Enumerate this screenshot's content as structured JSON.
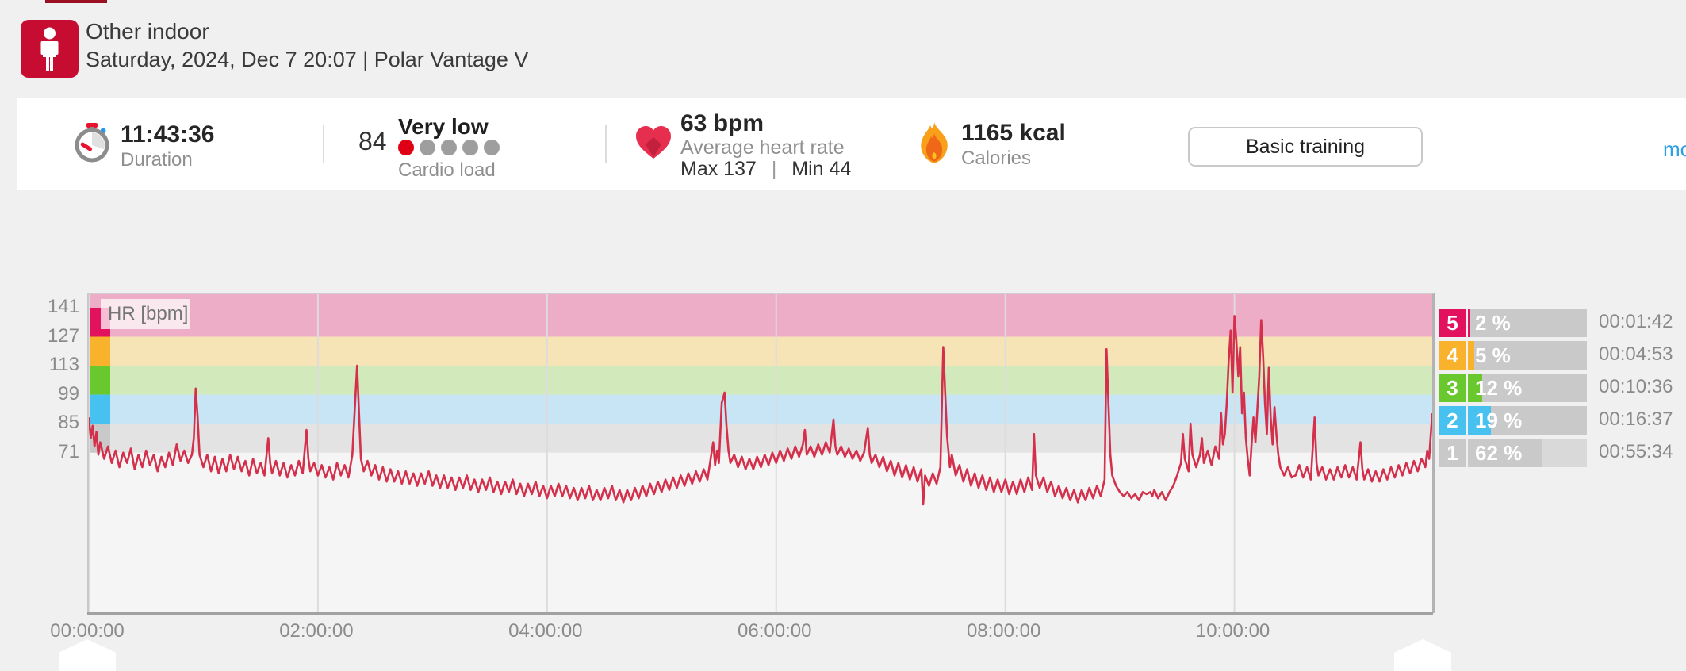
{
  "header": {
    "title": "Other indoor",
    "subtitle": "Saturday, 2024, Dec 7 20:07  |  Polar Vantage V",
    "sport_icon": "person-indoor-icon",
    "icon_color": "#c60c30"
  },
  "stats": {
    "duration": {
      "value": "11:43:36",
      "label": "Duration",
      "icon": "stopwatch-icon"
    },
    "cardio_load": {
      "value": "84",
      "status": "Very low",
      "label": "Cardio load",
      "dots_total": 5,
      "dots_filled": 1,
      "dot_filled_color": "#e00016",
      "dot_empty_color": "#9e9e9e"
    },
    "heart_rate": {
      "value": "63 bpm",
      "label": "Average heart rate",
      "max_label": "Max 137",
      "separator": "|",
      "min_label": "Min 44",
      "icon": "heart-icon"
    },
    "calories": {
      "value": "1165 kcal",
      "label": "Calories",
      "icon": "flame-icon"
    },
    "training_benefit_button": "Basic training",
    "more_link": "mo"
  },
  "chart_data": {
    "type": "line",
    "title": "HR [bpm]",
    "series_name": "HR",
    "unit": "bpm",
    "line_color": "#d4304c",
    "plot_bg": "#f5f5f5",
    "grid_color": "#dcdcdc",
    "x_ticks": [
      "00:00:00",
      "02:00:00",
      "04:00:00",
      "06:00:00",
      "08:00:00",
      "10:00:00"
    ],
    "x_tick_minutes": [
      0,
      120,
      240,
      360,
      480,
      600
    ],
    "xlim_minutes": [
      0,
      703.6
    ],
    "y_ticks": [
      141,
      127,
      113,
      99,
      85,
      71
    ],
    "ylim": [
      -6.5,
      147.5
    ],
    "summary": {
      "avg": 63,
      "max": 137,
      "min": 44
    },
    "zones": [
      {
        "zone": "5",
        "color": "#e3125f",
        "band_color": "#eeadc7",
        "bar_bg": "#c9c9c9",
        "bpm_range": [
          127,
          141
        ],
        "percent": 2,
        "percent_label": "2 %",
        "time": "00:01:42"
      },
      {
        "zone": "4",
        "color": "#f9b22b",
        "band_color": "#f6e4b6",
        "bar_bg": "#c9c9c9",
        "bpm_range": [
          113,
          127
        ],
        "percent": 5,
        "percent_label": "5 %",
        "time": "00:04:53"
      },
      {
        "zone": "3",
        "color": "#6ac82f",
        "band_color": "#d2eabb",
        "bar_bg": "#c9c9c9",
        "bpm_range": [
          99,
          113
        ],
        "percent": 12,
        "percent_label": "12 %",
        "time": "00:10:36"
      },
      {
        "zone": "2",
        "color": "#46c1f0",
        "band_color": "#c7e5f4",
        "bar_bg": "#c9c9c9",
        "bpm_range": [
          85,
          99
        ],
        "percent": 19,
        "percent_label": "19 %",
        "time": "00:16:37"
      },
      {
        "zone": "1",
        "color": "#c9c9c9",
        "band_color": "#e3e3e3",
        "bar_bg": "#d9d9d9",
        "bpm_range": [
          71,
          85
        ],
        "percent": 62,
        "percent_label": "62 %",
        "time": "00:55:34"
      }
    ],
    "points": [
      [
        0,
        88
      ],
      [
        1,
        78
      ],
      [
        2,
        84
      ],
      [
        3,
        74
      ],
      [
        4,
        81
      ],
      [
        5,
        70
      ],
      [
        6,
        76
      ],
      [
        8,
        68
      ],
      [
        10,
        74
      ],
      [
        12,
        66
      ],
      [
        14,
        72
      ],
      [
        16,
        64
      ],
      [
        18,
        71
      ],
      [
        20,
        66
      ],
      [
        22,
        73
      ],
      [
        24,
        63
      ],
      [
        26,
        70
      ],
      [
        28,
        64
      ],
      [
        30,
        72
      ],
      [
        32,
        65
      ],
      [
        34,
        70
      ],
      [
        36,
        62
      ],
      [
        38,
        69
      ],
      [
        40,
        64
      ],
      [
        42,
        71
      ],
      [
        44,
        65
      ],
      [
        46,
        75
      ],
      [
        48,
        67
      ],
      [
        50,
        72
      ],
      [
        52,
        66
      ],
      [
        54,
        70
      ],
      [
        55,
        78
      ],
      [
        56,
        102
      ],
      [
        57,
        88
      ],
      [
        58,
        70
      ],
      [
        60,
        64
      ],
      [
        62,
        70
      ],
      [
        64,
        62
      ],
      [
        66,
        69
      ],
      [
        68,
        61
      ],
      [
        70,
        68
      ],
      [
        72,
        62
      ],
      [
        74,
        70
      ],
      [
        76,
        63
      ],
      [
        78,
        69
      ],
      [
        80,
        62
      ],
      [
        82,
        67
      ],
      [
        84,
        60
      ],
      [
        86,
        68
      ],
      [
        88,
        61
      ],
      [
        90,
        66
      ],
      [
        92,
        60
      ],
      [
        94,
        78
      ],
      [
        95,
        66
      ],
      [
        96,
        61
      ],
      [
        98,
        67
      ],
      [
        100,
        60
      ],
      [
        102,
        66
      ],
      [
        104,
        59
      ],
      [
        106,
        65
      ],
      [
        108,
        60
      ],
      [
        110,
        67
      ],
      [
        112,
        61
      ],
      [
        114,
        82
      ],
      [
        115,
        68
      ],
      [
        116,
        62
      ],
      [
        118,
        66
      ],
      [
        120,
        60
      ],
      [
        122,
        65
      ],
      [
        124,
        59
      ],
      [
        126,
        64
      ],
      [
        128,
        58
      ],
      [
        130,
        66
      ],
      [
        132,
        60
      ],
      [
        134,
        65
      ],
      [
        136,
        59
      ],
      [
        138,
        70
      ],
      [
        139.5,
        96
      ],
      [
        140.5,
        113
      ],
      [
        141.5,
        90
      ],
      [
        142.5,
        68
      ],
      [
        144,
        62
      ],
      [
        146,
        67
      ],
      [
        148,
        60
      ],
      [
        150,
        65
      ],
      [
        152,
        58
      ],
      [
        154,
        64
      ],
      [
        156,
        57
      ],
      [
        158,
        63
      ],
      [
        160,
        57
      ],
      [
        162,
        62
      ],
      [
        164,
        56
      ],
      [
        166,
        62
      ],
      [
        168,
        56
      ],
      [
        170,
        61
      ],
      [
        172,
        55
      ],
      [
        174,
        61
      ],
      [
        176,
        56
      ],
      [
        178,
        62
      ],
      [
        180,
        55
      ],
      [
        182,
        60
      ],
      [
        184,
        54
      ],
      [
        186,
        60
      ],
      [
        188,
        54
      ],
      [
        190,
        59
      ],
      [
        192,
        53
      ],
      [
        194,
        59
      ],
      [
        196,
        54
      ],
      [
        198,
        60
      ],
      [
        200,
        53
      ],
      [
        202,
        58
      ],
      [
        204,
        52
      ],
      [
        206,
        58
      ],
      [
        208,
        53
      ],
      [
        210,
        59
      ],
      [
        212,
        52
      ],
      [
        214,
        57
      ],
      [
        216,
        51
      ],
      [
        218,
        57
      ],
      [
        220,
        52
      ],
      [
        222,
        58
      ],
      [
        224,
        51
      ],
      [
        226,
        56
      ],
      [
        228,
        50
      ],
      [
        230,
        56
      ],
      [
        232,
        51
      ],
      [
        234,
        57
      ],
      [
        236,
        50
      ],
      [
        238,
        55
      ],
      [
        240,
        49
      ],
      [
        242,
        55
      ],
      [
        244,
        50
      ],
      [
        246,
        56
      ],
      [
        248,
        50
      ],
      [
        250,
        55
      ],
      [
        252,
        49
      ],
      [
        254,
        54
      ],
      [
        256,
        48
      ],
      [
        258,
        54
      ],
      [
        260,
        49
      ],
      [
        262,
        55
      ],
      [
        264,
        48
      ],
      [
        266,
        53
      ],
      [
        268,
        48
      ],
      [
        270,
        54
      ],
      [
        272,
        49
      ],
      [
        274,
        55
      ],
      [
        276,
        48
      ],
      [
        278,
        53
      ],
      [
        280,
        47
      ],
      [
        282,
        53
      ],
      [
        284,
        48
      ],
      [
        286,
        54
      ],
      [
        288,
        49
      ],
      [
        290,
        55
      ],
      [
        292,
        50
      ],
      [
        294,
        56
      ],
      [
        296,
        51
      ],
      [
        298,
        57
      ],
      [
        300,
        52
      ],
      [
        302,
        58
      ],
      [
        304,
        53
      ],
      [
        306,
        59
      ],
      [
        308,
        54
      ],
      [
        310,
        60
      ],
      [
        312,
        55
      ],
      [
        314,
        61
      ],
      [
        316,
        56
      ],
      [
        318,
        62
      ],
      [
        320,
        57
      ],
      [
        322,
        63
      ],
      [
        324,
        58
      ],
      [
        326,
        70
      ],
      [
        327,
        76
      ],
      [
        328,
        65
      ],
      [
        329,
        72
      ],
      [
        330,
        66
      ],
      [
        331.5,
        95
      ],
      [
        333,
        100
      ],
      [
        334,
        84
      ],
      [
        335,
        72
      ],
      [
        336,
        66
      ],
      [
        338,
        70
      ],
      [
        340,
        64
      ],
      [
        342,
        69
      ],
      [
        344,
        63
      ],
      [
        346,
        68
      ],
      [
        348,
        63
      ],
      [
        350,
        69
      ],
      [
        352,
        64
      ],
      [
        354,
        70
      ],
      [
        356,
        65
      ],
      [
        358,
        71
      ],
      [
        360,
        66
      ],
      [
        362,
        72
      ],
      [
        364,
        67
      ],
      [
        366,
        73
      ],
      [
        368,
        68
      ],
      [
        370,
        74
      ],
      [
        372,
        69
      ],
      [
        374,
        75
      ],
      [
        375,
        82
      ],
      [
        376,
        70
      ],
      [
        378,
        74
      ],
      [
        380,
        69
      ],
      [
        382,
        75
      ],
      [
        384,
        70
      ],
      [
        386,
        76
      ],
      [
        388,
        71
      ],
      [
        390,
        87
      ],
      [
        391,
        74
      ],
      [
        392,
        70
      ],
      [
        394,
        74
      ],
      [
        396,
        69
      ],
      [
        398,
        73
      ],
      [
        400,
        68
      ],
      [
        402,
        72
      ],
      [
        404,
        67
      ],
      [
        406,
        71
      ],
      [
        408,
        83
      ],
      [
        409,
        70
      ],
      [
        410,
        66
      ],
      [
        412,
        70
      ],
      [
        414,
        64
      ],
      [
        416,
        69
      ],
      [
        418,
        62
      ],
      [
        420,
        67
      ],
      [
        422,
        60
      ],
      [
        424,
        66
      ],
      [
        426,
        59
      ],
      [
        428,
        65
      ],
      [
        430,
        58
      ],
      [
        432,
        64
      ],
      [
        434,
        57
      ],
      [
        436,
        63
      ],
      [
        437,
        46
      ],
      [
        438,
        60
      ],
      [
        440,
        55
      ],
      [
        442,
        61
      ],
      [
        444,
        56
      ],
      [
        446,
        64
      ],
      [
        447.5,
        122
      ],
      [
        448.5,
        100
      ],
      [
        449.5,
        79
      ],
      [
        451,
        64
      ],
      [
        452,
        70
      ],
      [
        454,
        60
      ],
      [
        456,
        65
      ],
      [
        458,
        57
      ],
      [
        460,
        63
      ],
      [
        462,
        55
      ],
      [
        464,
        61
      ],
      [
        466,
        54
      ],
      [
        468,
        60
      ],
      [
        470,
        53
      ],
      [
        472,
        59
      ],
      [
        474,
        52
      ],
      [
        476,
        58
      ],
      [
        478,
        52
      ],
      [
        480,
        58
      ],
      [
        482,
        51
      ],
      [
        484,
        57
      ],
      [
        486,
        51
      ],
      [
        488,
        58
      ],
      [
        490,
        52
      ],
      [
        492,
        59
      ],
      [
        494,
        53
      ],
      [
        495,
        80
      ],
      [
        496,
        60
      ],
      [
        498,
        54
      ],
      [
        500,
        59
      ],
      [
        502,
        52
      ],
      [
        504,
        57
      ],
      [
        506,
        50
      ],
      [
        508,
        55
      ],
      [
        510,
        49
      ],
      [
        512,
        54
      ],
      [
        514,
        48
      ],
      [
        516,
        53
      ],
      [
        518,
        47
      ],
      [
        520,
        53
      ],
      [
        522,
        48
      ],
      [
        524,
        54
      ],
      [
        526,
        49
      ],
      [
        528,
        55
      ],
      [
        530,
        50
      ],
      [
        532,
        58
      ],
      [
        533,
        121
      ],
      [
        534,
        95
      ],
      [
        535,
        70
      ],
      [
        536,
        60
      ],
      [
        538,
        55
      ],
      [
        540,
        52
      ],
      [
        542,
        50
      ],
      [
        544,
        52
      ],
      [
        546,
        49
      ],
      [
        548,
        51
      ],
      [
        550,
        48
      ],
      [
        552,
        52
      ],
      [
        554,
        51
      ],
      [
        556,
        52
      ],
      [
        557,
        50
      ],
      [
        558,
        53
      ],
      [
        560,
        49
      ],
      [
        562,
        52
      ],
      [
        564,
        48
      ],
      [
        566,
        52
      ],
      [
        568,
        55
      ],
      [
        570,
        60
      ],
      [
        572,
        66
      ],
      [
        573,
        80
      ],
      [
        574,
        68
      ],
      [
        576,
        62
      ],
      [
        577,
        85
      ],
      [
        578,
        70
      ],
      [
        580,
        64
      ],
      [
        582,
        70
      ],
      [
        583,
        78
      ],
      [
        584,
        66
      ],
      [
        586,
        72
      ],
      [
        588,
        65
      ],
      [
        590,
        74
      ],
      [
        592,
        68
      ],
      [
        593,
        90
      ],
      [
        594,
        75
      ],
      [
        595,
        80
      ],
      [
        596,
        95
      ],
      [
        597,
        115
      ],
      [
        598,
        130
      ],
      [
        599,
        100
      ],
      [
        600,
        137
      ],
      [
        601,
        125
      ],
      [
        602,
        108
      ],
      [
        603,
        122
      ],
      [
        604,
        90
      ],
      [
        605,
        100
      ],
      [
        606,
        78
      ],
      [
        607,
        68
      ],
      [
        608,
        60
      ],
      [
        609,
        75
      ],
      [
        610,
        88
      ],
      [
        611,
        76
      ],
      [
        612,
        92
      ],
      [
        613,
        108
      ],
      [
        614,
        135
      ],
      [
        615,
        118
      ],
      [
        616,
        95
      ],
      [
        617,
        80
      ],
      [
        618,
        112
      ],
      [
        619,
        88
      ],
      [
        620,
        75
      ],
      [
        621,
        93
      ],
      [
        622,
        80
      ],
      [
        623,
        70
      ],
      [
        624,
        64
      ],
      [
        626,
        60
      ],
      [
        628,
        64
      ],
      [
        630,
        59
      ],
      [
        632,
        60
      ],
      [
        634,
        65
      ],
      [
        636,
        59
      ],
      [
        638,
        64
      ],
      [
        640,
        58
      ],
      [
        642,
        88
      ],
      [
        643,
        66
      ],
      [
        644,
        60
      ],
      [
        646,
        64
      ],
      [
        648,
        58
      ],
      [
        650,
        63
      ],
      [
        652,
        58
      ],
      [
        654,
        64
      ],
      [
        656,
        59
      ],
      [
        658,
        65
      ],
      [
        660,
        59
      ],
      [
        662,
        64
      ],
      [
        664,
        58
      ],
      [
        666,
        76
      ],
      [
        667,
        63
      ],
      [
        668,
        58
      ],
      [
        670,
        63
      ],
      [
        672,
        57
      ],
      [
        674,
        62
      ],
      [
        676,
        57
      ],
      [
        678,
        63
      ],
      [
        680,
        58
      ],
      [
        682,
        64
      ],
      [
        684,
        59
      ],
      [
        686,
        65
      ],
      [
        688,
        60
      ],
      [
        690,
        66
      ],
      [
        692,
        61
      ],
      [
        694,
        67
      ],
      [
        696,
        62
      ],
      [
        698,
        68
      ],
      [
        700,
        64
      ],
      [
        701,
        72
      ],
      [
        702,
        68
      ],
      [
        703,
        82
      ],
      [
        703.6,
        90
      ]
    ]
  }
}
